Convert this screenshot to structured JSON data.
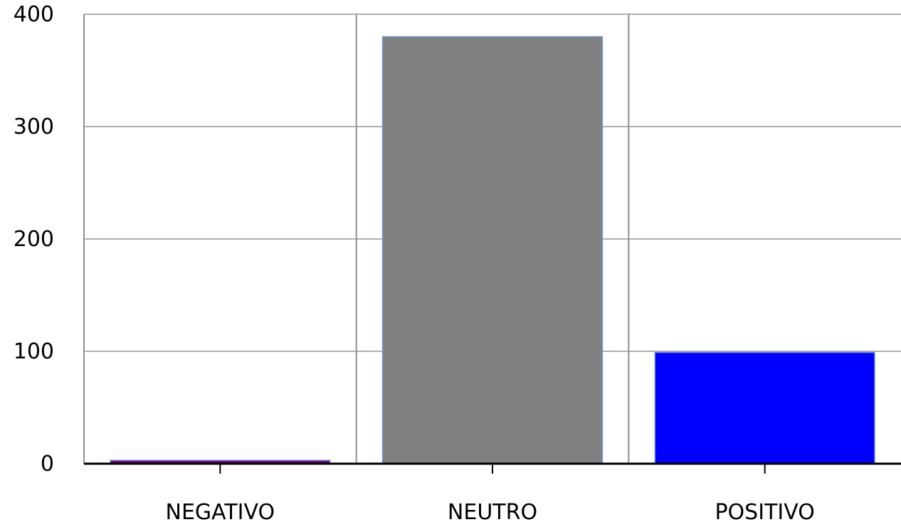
{
  "chart_data": {
    "type": "bar",
    "categories": [
      "NEGATIVO",
      "NEUTRO",
      "POSITIVO"
    ],
    "values": [
      3,
      380,
      99
    ],
    "colors": [
      "#800080",
      "#808080",
      "#0000ff"
    ],
    "bar_border_color": "#6b8fd6",
    "title": "",
    "xlabel": "",
    "ylabel": "",
    "ylim": [
      0,
      400
    ],
    "yticks": [
      "0",
      "100",
      "200",
      "300",
      "400"
    ],
    "grid": true,
    "legend": "none"
  }
}
